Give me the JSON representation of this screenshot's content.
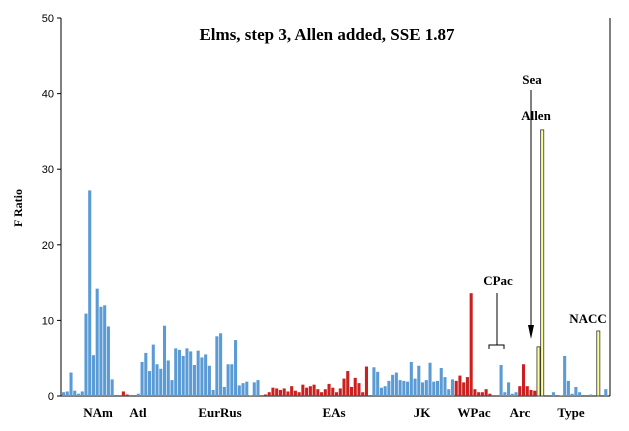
{
  "chart_data": {
    "type": "bar",
    "title": "Elms, step 3, Allen added, SSE 1.87",
    "ylabel": "F Ratio",
    "xlabel": "",
    "ylim": [
      0,
      50
    ],
    "yticks": [
      0,
      10,
      20,
      30,
      40,
      50
    ],
    "colors": {
      "blue": "#5b9bd5",
      "red": "#cc1f1f",
      "yellow": "#ffff99",
      "edge": "#333333"
    },
    "bars": [
      {
        "v": 0.5,
        "c": "blue"
      },
      {
        "v": 0.6,
        "c": "blue"
      },
      {
        "v": 3.1,
        "c": "blue"
      },
      {
        "v": 0.7,
        "c": "blue"
      },
      {
        "v": 0.3,
        "c": "blue"
      },
      {
        "v": 0.6,
        "c": "blue"
      },
      {
        "v": 10.9,
        "c": "blue"
      },
      {
        "v": 27.2,
        "c": "blue"
      },
      {
        "v": 5.4,
        "c": "blue"
      },
      {
        "v": 14.2,
        "c": "blue"
      },
      {
        "v": 11.8,
        "c": "blue"
      },
      {
        "v": 12.0,
        "c": "blue"
      },
      {
        "v": 9.2,
        "c": "blue"
      },
      {
        "v": 2.2,
        "c": "blue"
      },
      {
        "v": 0,
        "c": "blue"
      },
      {
        "v": 0,
        "c": "blue"
      },
      {
        "v": 0.6,
        "c": "red"
      },
      {
        "v": 0.2,
        "c": "red"
      },
      {
        "v": 0,
        "c": "blue"
      },
      {
        "v": 0,
        "c": "blue"
      },
      {
        "v": 0.3,
        "c": "blue"
      },
      {
        "v": 4.5,
        "c": "blue"
      },
      {
        "v": 5.7,
        "c": "blue"
      },
      {
        "v": 3.3,
        "c": "blue"
      },
      {
        "v": 6.8,
        "c": "blue"
      },
      {
        "v": 4.2,
        "c": "blue"
      },
      {
        "v": 3.6,
        "c": "blue"
      },
      {
        "v": 9.3,
        "c": "blue"
      },
      {
        "v": 4.7,
        "c": "blue"
      },
      {
        "v": 2.1,
        "c": "blue"
      },
      {
        "v": 6.3,
        "c": "blue"
      },
      {
        "v": 6.1,
        "c": "blue"
      },
      {
        "v": 5.3,
        "c": "blue"
      },
      {
        "v": 6.3,
        "c": "blue"
      },
      {
        "v": 5.9,
        "c": "blue"
      },
      {
        "v": 4.1,
        "c": "blue"
      },
      {
        "v": 6.0,
        "c": "blue"
      },
      {
        "v": 5.1,
        "c": "blue"
      },
      {
        "v": 5.5,
        "c": "blue"
      },
      {
        "v": 4.0,
        "c": "blue"
      },
      {
        "v": 0.8,
        "c": "blue"
      },
      {
        "v": 7.9,
        "c": "blue"
      },
      {
        "v": 8.3,
        "c": "blue"
      },
      {
        "v": 1.2,
        "c": "blue"
      },
      {
        "v": 4.2,
        "c": "blue"
      },
      {
        "v": 4.2,
        "c": "blue"
      },
      {
        "v": 7.4,
        "c": "blue"
      },
      {
        "v": 1.4,
        "c": "blue"
      },
      {
        "v": 1.7,
        "c": "blue"
      },
      {
        "v": 1.9,
        "c": "blue"
      },
      {
        "v": 0.1,
        "c": "blue"
      },
      {
        "v": 1.8,
        "c": "blue"
      },
      {
        "v": 2.1,
        "c": "blue"
      },
      {
        "v": 0,
        "c": "red"
      },
      {
        "v": 0.2,
        "c": "red"
      },
      {
        "v": 0.5,
        "c": "red"
      },
      {
        "v": 1.1,
        "c": "red"
      },
      {
        "v": 1.0,
        "c": "red"
      },
      {
        "v": 0.8,
        "c": "red"
      },
      {
        "v": 1.0,
        "c": "red"
      },
      {
        "v": 0.6,
        "c": "red"
      },
      {
        "v": 1.3,
        "c": "red"
      },
      {
        "v": 0.7,
        "c": "red"
      },
      {
        "v": 0.5,
        "c": "red"
      },
      {
        "v": 1.5,
        "c": "red"
      },
      {
        "v": 1.1,
        "c": "red"
      },
      {
        "v": 1.3,
        "c": "red"
      },
      {
        "v": 1.5,
        "c": "red"
      },
      {
        "v": 0.9,
        "c": "red"
      },
      {
        "v": 0.5,
        "c": "red"
      },
      {
        "v": 0.9,
        "c": "red"
      },
      {
        "v": 1.6,
        "c": "red"
      },
      {
        "v": 1.1,
        "c": "red"
      },
      {
        "v": 0.5,
        "c": "red"
      },
      {
        "v": 1.0,
        "c": "red"
      },
      {
        "v": 2.3,
        "c": "red"
      },
      {
        "v": 3.3,
        "c": "red"
      },
      {
        "v": 1.2,
        "c": "red"
      },
      {
        "v": 2.4,
        "c": "red"
      },
      {
        "v": 1.7,
        "c": "red"
      },
      {
        "v": 0.5,
        "c": "red"
      },
      {
        "v": 3.9,
        "c": "red"
      },
      {
        "v": 0,
        "c": "blue"
      },
      {
        "v": 3.8,
        "c": "blue"
      },
      {
        "v": 3.2,
        "c": "blue"
      },
      {
        "v": 1.1,
        "c": "blue"
      },
      {
        "v": 1.3,
        "c": "blue"
      },
      {
        "v": 2.0,
        "c": "blue"
      },
      {
        "v": 2.8,
        "c": "blue"
      },
      {
        "v": 3.1,
        "c": "blue"
      },
      {
        "v": 2.1,
        "c": "blue"
      },
      {
        "v": 2.0,
        "c": "blue"
      },
      {
        "v": 1.9,
        "c": "blue"
      },
      {
        "v": 4.5,
        "c": "blue"
      },
      {
        "v": 2.3,
        "c": "blue"
      },
      {
        "v": 4.0,
        "c": "blue"
      },
      {
        "v": 1.8,
        "c": "blue"
      },
      {
        "v": 2.1,
        "c": "blue"
      },
      {
        "v": 4.4,
        "c": "blue"
      },
      {
        "v": 1.9,
        "c": "blue"
      },
      {
        "v": 2.0,
        "c": "blue"
      },
      {
        "v": 3.7,
        "c": "blue"
      },
      {
        "v": 2.5,
        "c": "blue"
      },
      {
        "v": 0.9,
        "c": "blue"
      },
      {
        "v": 2.2,
        "c": "blue"
      },
      {
        "v": 2.0,
        "c": "red"
      },
      {
        "v": 2.7,
        "c": "red"
      },
      {
        "v": 1.8,
        "c": "red"
      },
      {
        "v": 2.5,
        "c": "red"
      },
      {
        "v": 13.6,
        "c": "red"
      },
      {
        "v": 0.9,
        "c": "red"
      },
      {
        "v": 0.5,
        "c": "red"
      },
      {
        "v": 0.5,
        "c": "red"
      },
      {
        "v": 0.9,
        "c": "red"
      },
      {
        "v": 0.3,
        "c": "red"
      },
      {
        "v": 0,
        "c": "blue"
      },
      {
        "v": 0,
        "c": "blue"
      },
      {
        "v": 4.1,
        "c": "blue"
      },
      {
        "v": 0.5,
        "c": "blue"
      },
      {
        "v": 1.8,
        "c": "blue"
      },
      {
        "v": 0.3,
        "c": "blue"
      },
      {
        "v": 0.5,
        "c": "blue"
      },
      {
        "v": 1.3,
        "c": "red"
      },
      {
        "v": 4.2,
        "c": "red"
      },
      {
        "v": 1.3,
        "c": "red"
      },
      {
        "v": 0.8,
        "c": "red"
      },
      {
        "v": 0.7,
        "c": "red"
      },
      {
        "v": 6.5,
        "c": "yellow"
      },
      {
        "v": 35.2,
        "c": "yellow"
      },
      {
        "v": 0,
        "c": "blue"
      },
      {
        "v": 0,
        "c": "blue"
      },
      {
        "v": 0.5,
        "c": "blue"
      },
      {
        "v": 0,
        "c": "blue"
      },
      {
        "v": 0.1,
        "c": "blue"
      },
      {
        "v": 5.3,
        "c": "blue"
      },
      {
        "v": 2.0,
        "c": "blue"
      },
      {
        "v": 0.3,
        "c": "blue"
      },
      {
        "v": 1.2,
        "c": "blue"
      },
      {
        "v": 0.5,
        "c": "blue"
      },
      {
        "v": 0,
        "c": "blue"
      },
      {
        "v": 0,
        "c": "blue"
      },
      {
        "v": 0.2,
        "c": "blue"
      },
      {
        "v": 0,
        "c": "blue"
      },
      {
        "v": 8.6,
        "c": "yellow"
      },
      {
        "v": 0,
        "c": "blue"
      },
      {
        "v": 0.9,
        "c": "blue"
      }
    ],
    "group_labels": [
      "NAm",
      "Atl",
      "EurRus",
      "EAs",
      "JK",
      "WPac",
      "Arc",
      "Type"
    ],
    "annotations": [
      "Sea",
      "Allen",
      "CPac",
      "NACC"
    ]
  }
}
